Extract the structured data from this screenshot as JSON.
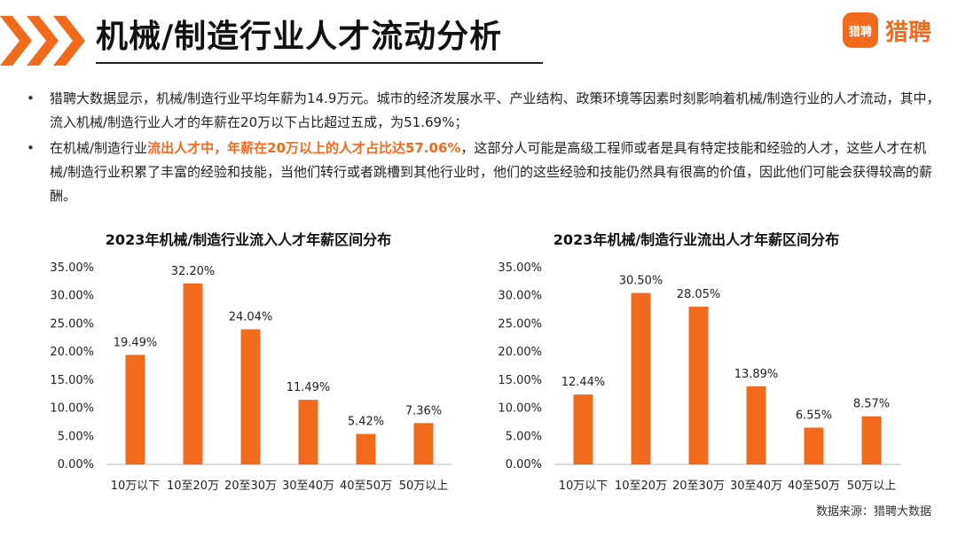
{
  "header": {
    "title": "机械/制造行业人才流动分析",
    "logo_icon_text": "猎聘",
    "logo_text": "猎聘"
  },
  "bullets": [
    {
      "text": "猎聘大数据显示，机械/制造行业平均年薪为14.9万元。城市的经济发展水平、产业结构、政策环境等因素时刻影响着机械/制造行业的人才流动，其中，流入机械/制造行业人才的年薪在20万以下占比超过五成，为51.69%；"
    },
    {
      "before": "在机械/制造行业",
      "highlight": "流出人才中，年薪在20万以上的人才占比达57.06%",
      "after": "，这部分人可能是高级工程师或者是具有特定技能和经验的人才，这些人才在机械/制造行业积累了丰富的经验和技能，当他们转行或者跳槽到其他行业时，他们的这些经验和技能仍然具有很高的价值，因此他们可能会获得较高的薪酬。"
    }
  ],
  "colors": {
    "accent": "#f26b1d",
    "bar": "#f26b1d"
  },
  "chart_data": [
    {
      "type": "bar",
      "title": "2023年机械/制造行业流入人才年薪区间分布",
      "categories": [
        "10万以下",
        "10至20万",
        "20至30万",
        "30至40万",
        "40至50万",
        "50万以上"
      ],
      "values": [
        19.49,
        32.2,
        24.04,
        11.49,
        5.42,
        7.36
      ],
      "labels": [
        "19.49%",
        "32.20%",
        "24.04%",
        "11.49%",
        "5.42%",
        "7.36%"
      ],
      "ylim": [
        0,
        35
      ],
      "yticks": [
        "0.00%",
        "5.00%",
        "10.00%",
        "15.00%",
        "20.00%",
        "25.00%",
        "30.00%",
        "35.00%"
      ],
      "grid": false
    },
    {
      "type": "bar",
      "title": "2023年机械/制造行业流出人才年薪区间分布",
      "categories": [
        "10万以下",
        "10至20万",
        "20至30万",
        "30至40万",
        "40至50万",
        "50万以上"
      ],
      "values": [
        12.44,
        30.5,
        28.05,
        13.89,
        6.55,
        8.57
      ],
      "labels": [
        "12.44%",
        "30.50%",
        "28.05%",
        "13.89%",
        "6.55%",
        "8.57%"
      ],
      "ylim": [
        0,
        35
      ],
      "yticks": [
        "0.00%",
        "5.00%",
        "10.00%",
        "15.00%",
        "20.00%",
        "25.00%",
        "30.00%",
        "35.00%"
      ],
      "grid": false
    }
  ],
  "source": "数据来源：猎聘大数据"
}
